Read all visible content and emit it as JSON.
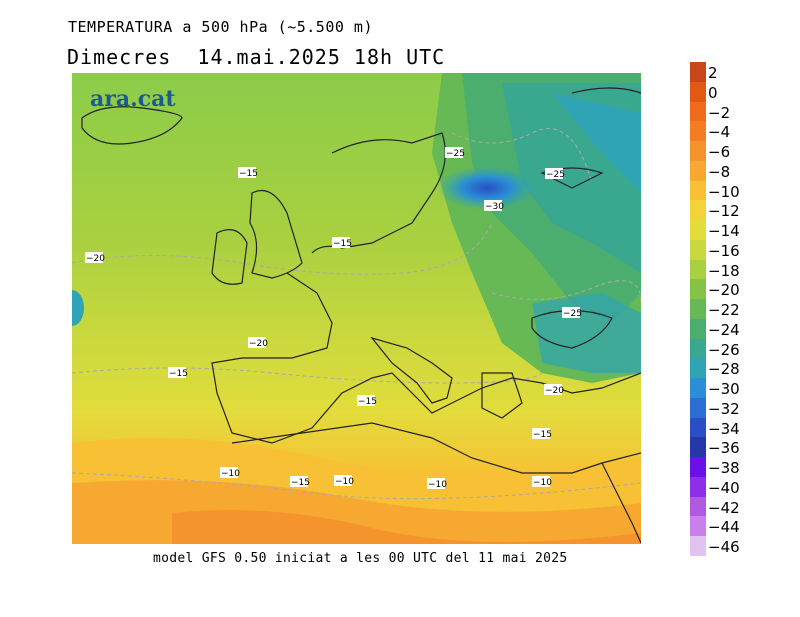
{
  "header": {
    "title": "TEMPERATURA a 500 hPa (~5.500 m)",
    "subtitle": "Dimecres  14.mai.2025 18h UTC"
  },
  "logo": {
    "text": "ara.cat"
  },
  "footer": {
    "text": "model GFS 0.50 iniciat a les 00 UTC del 11 mai 2025"
  },
  "colorbar": {
    "labels": [
      "2",
      "0",
      "−2",
      "−4",
      "−6",
      "−8",
      "−10",
      "−12",
      "−14",
      "−16",
      "−18",
      "−20",
      "−22",
      "−24",
      "−26",
      "−28",
      "−30",
      "−32",
      "−34",
      "−36",
      "−38",
      "−40",
      "−42",
      "−44",
      "−46"
    ],
    "colors": [
      "#c8461c",
      "#e05a14",
      "#ee6c1a",
      "#f27d22",
      "#f5932c",
      "#f7a831",
      "#f8c034",
      "#f2d438",
      "#e2dc3c",
      "#c8d83e",
      "#a8d040",
      "#86c447",
      "#66b955",
      "#4cae6e",
      "#3aa88e",
      "#2fa4b5",
      "#2a8fd6",
      "#2c6ed2",
      "#2b4ec4",
      "#2438a8",
      "#6a10e8",
      "#8e2ee8",
      "#b05ae4",
      "#c880ec",
      "#e2c2f0"
    ]
  },
  "map": {
    "contour_labels": [
      {
        "text": "−25"
      },
      {
        "text": "−25"
      },
      {
        "text": "−30"
      },
      {
        "text": "−15"
      },
      {
        "text": "−15"
      },
      {
        "text": "−20"
      },
      {
        "text": "−25"
      },
      {
        "text": "−20"
      },
      {
        "text": "−15"
      },
      {
        "text": "−20"
      },
      {
        "text": "−15"
      },
      {
        "text": "−15"
      },
      {
        "text": "−10"
      },
      {
        "text": "−15"
      },
      {
        "text": "−10"
      },
      {
        "text": "−10"
      },
      {
        "text": "−10"
      }
    ]
  }
}
